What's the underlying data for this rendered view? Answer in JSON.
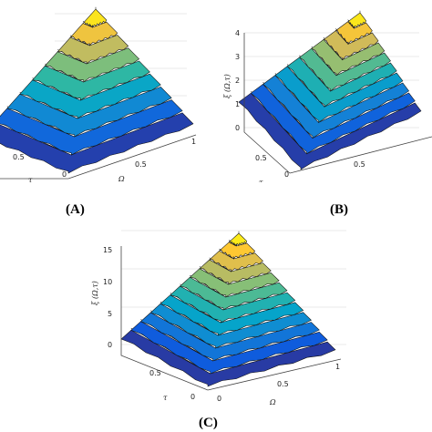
{
  "chart_data": [
    {
      "type": "surface",
      "panel": "(A)",
      "xlabel": "τ",
      "ylabel": "Ω",
      "zlabel": "",
      "x_ticks": [
        "0.5",
        "0"
      ],
      "y_ticks": [
        "0.5",
        "1"
      ],
      "z_ticks": [],
      "zlim": [
        0,
        4
      ],
      "levels": 9,
      "colormap": "parula"
    },
    {
      "type": "surface",
      "panel": "(B)",
      "xlabel": "τ",
      "ylabel": "Ω",
      "zlabel": "ξ (Ω,τ)",
      "x_ticks": [
        "0.5",
        "0"
      ],
      "y_ticks": [
        "0.5"
      ],
      "z_ticks": [
        "0",
        "1",
        "2",
        "3",
        "4"
      ],
      "zlim": [
        0,
        4
      ],
      "levels": 10,
      "colormap": "parula"
    },
    {
      "type": "surface",
      "panel": "(C)",
      "xlabel": "τ",
      "ylabel": "Ω",
      "zlabel": "ξ (Ω,τ)",
      "x_ticks": [
        "0.5",
        "0"
      ],
      "y_ticks": [
        "0",
        "0.5",
        "1"
      ],
      "z_ticks": [
        "0",
        "5",
        "10",
        "15"
      ],
      "zlim": [
        0,
        15
      ],
      "levels": 12,
      "colormap": "parula"
    }
  ]
}
